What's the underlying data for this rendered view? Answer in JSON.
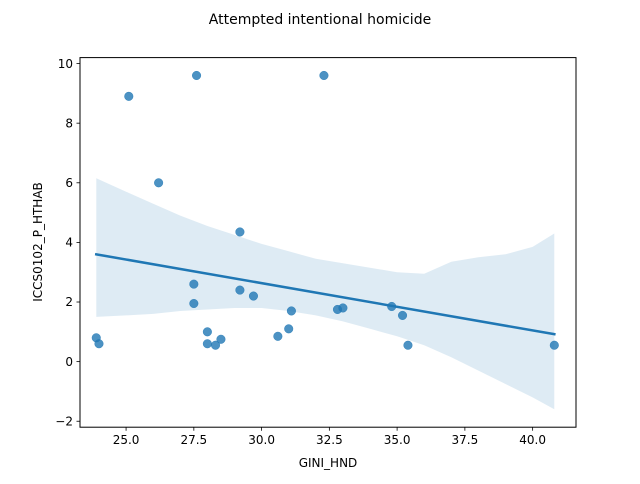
{
  "chart_data": {
    "type": "scatter",
    "title": "Attempted intentional homicide",
    "xlabel": "GINI_HND",
    "ylabel": "ICCS0102_P_HTHAB",
    "xlim": [
      23.3,
      41.6
    ],
    "ylim": [
      -2.2,
      10.2
    ],
    "xticks": [
      "25.0",
      "27.5",
      "30.0",
      "32.5",
      "35.0",
      "37.5",
      "40.0"
    ],
    "yticks": [
      "−2",
      "0",
      "2",
      "4",
      "6",
      "8",
      "10"
    ],
    "grid": false,
    "colors": {
      "points": "#1f77b4",
      "band": "#1f77b4"
    },
    "points": [
      {
        "x": 23.9,
        "y": 0.8
      },
      {
        "x": 24.0,
        "y": 0.6
      },
      {
        "x": 25.1,
        "y": 8.9
      },
      {
        "x": 26.2,
        "y": 6.0
      },
      {
        "x": 27.5,
        "y": 2.6
      },
      {
        "x": 27.5,
        "y": 1.95
      },
      {
        "x": 27.6,
        "y": 9.6
      },
      {
        "x": 28.0,
        "y": 1.0
      },
      {
        "x": 28.0,
        "y": 0.6
      },
      {
        "x": 28.3,
        "y": 0.55
      },
      {
        "x": 28.5,
        "y": 0.75
      },
      {
        "x": 29.2,
        "y": 4.35
      },
      {
        "x": 29.2,
        "y": 2.4
      },
      {
        "x": 29.7,
        "y": 2.2
      },
      {
        "x": 30.6,
        "y": 0.85
      },
      {
        "x": 31.0,
        "y": 1.1
      },
      {
        "x": 31.1,
        "y": 1.7
      },
      {
        "x": 32.3,
        "y": 9.6
      },
      {
        "x": 32.8,
        "y": 1.75
      },
      {
        "x": 33.0,
        "y": 1.8
      },
      {
        "x": 34.8,
        "y": 1.85
      },
      {
        "x": 35.2,
        "y": 1.55
      },
      {
        "x": 35.4,
        "y": 0.55
      },
      {
        "x": 40.8,
        "y": 0.55
      }
    ],
    "regression": {
      "x": [
        23.9,
        40.8
      ],
      "y": [
        3.6,
        0.92
      ]
    },
    "confidence_band": {
      "x": [
        23.9,
        25.0,
        26.0,
        27.0,
        28.0,
        29.0,
        30.0,
        31.0,
        32.0,
        33.0,
        34.0,
        35.0,
        36.0,
        37.0,
        38.0,
        39.0,
        40.0,
        40.8
      ],
      "upper": [
        6.15,
        5.7,
        5.3,
        4.9,
        4.55,
        4.25,
        3.95,
        3.7,
        3.45,
        3.3,
        3.15,
        3.0,
        2.95,
        3.35,
        3.5,
        3.6,
        3.85,
        4.3
      ],
      "lower": [
        1.5,
        1.55,
        1.6,
        1.7,
        1.75,
        1.8,
        1.8,
        1.7,
        1.55,
        1.35,
        1.1,
        0.85,
        0.55,
        0.15,
        -0.3,
        -0.75,
        -1.2,
        -1.6
      ]
    }
  }
}
